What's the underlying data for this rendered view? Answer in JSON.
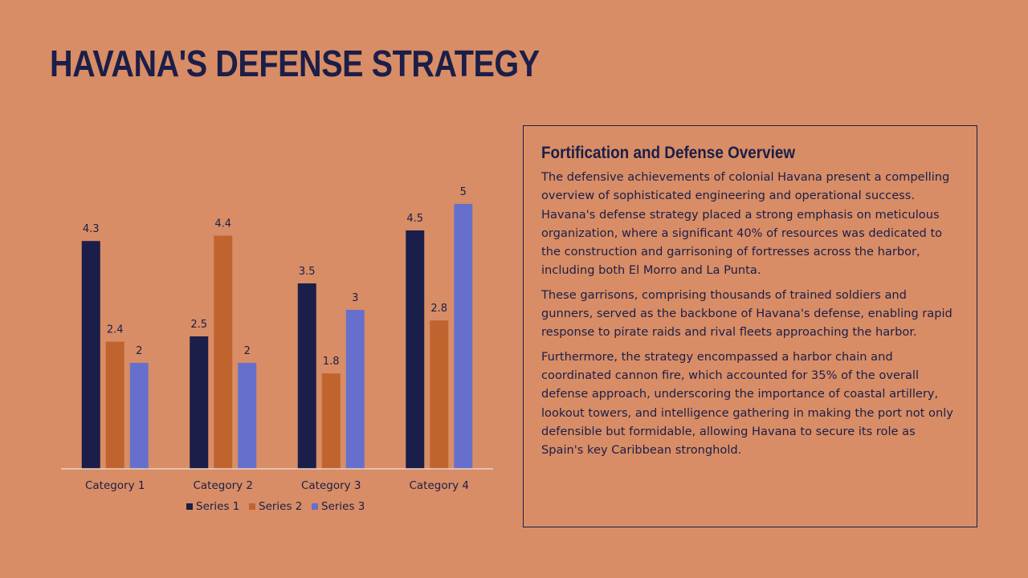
{
  "slide": {
    "title": "HAVANA'S DEFENSE STRATEGY",
    "background": "#D88D66"
  },
  "panel": {
    "heading": "Fortification and Defense Overview",
    "paragraphs": [
      "The defensive achievements of colonial Havana present a compelling overview of sophisticated engineering and operational success. Havana's defense strategy placed a strong emphasis on meticulous organization, where a significant 40% of resources was dedicated to the construction and garrisoning of fortresses across the harbor, including both El Morro and La Punta.",
      "These garrisons, comprising thousands of trained soldiers and gunners, served as the backbone of Havana's defense, enabling rapid response to pirate raids and rival fleets approaching the harbor.",
      "Furthermore, the strategy encompassed a harbor chain and coordinated cannon fire, which accounted for 35% of the overall defense approach, underscoring the importance of coastal artillery, lookout towers, and intelligence gathering in making the port not only defensible but formidable, allowing Havana to secure its role as Spain's key Caribbean stronghold."
    ]
  },
  "chart_data": {
    "type": "bar",
    "categories": [
      "Category 1",
      "Category 2",
      "Category 3",
      "Category 4"
    ],
    "series": [
      {
        "name": "Series 1",
        "values": [
          4.3,
          2.5,
          3.5,
          4.5
        ],
        "color": "#1B1E48"
      },
      {
        "name": "Series 2",
        "values": [
          2.4,
          4.4,
          1.8,
          2.8
        ],
        "color": "#C0642F"
      },
      {
        "name": "Series 3",
        "values": [
          2,
          2,
          3,
          5
        ],
        "color": "#6670CC"
      }
    ],
    "ylim": [
      0,
      5.5
    ],
    "grid": false,
    "legend": "bottom",
    "data_labels": true
  }
}
